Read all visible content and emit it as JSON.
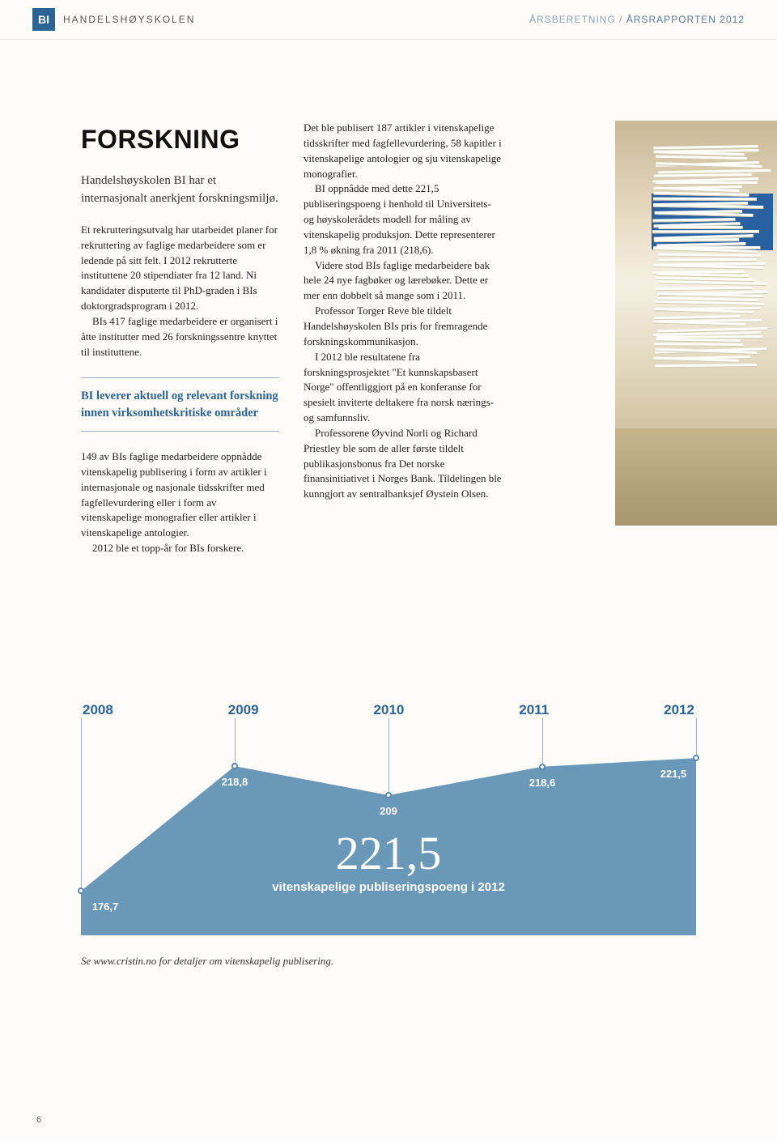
{
  "header": {
    "logo_mark": "BI",
    "logo_text": "HANDELSHØYSKOLEN",
    "crumb_left": "ÅRSBERETNING",
    "crumb_sep": " / ",
    "crumb_right": "ÅRSRAPPORTEN 2012"
  },
  "article": {
    "title": "FORSKNING",
    "lead": "Handelshøyskolen BI har et internasjonalt anerkjent forskningsmiljø.",
    "col1a": "Et rekrutteringsutvalg har utarbeidet planer for rekruttering av faglige medarbeidere som er ledende på sitt felt. I 2012 rekrutterte instituttene 20 stipendiater fra 12 land. Ni kandidater disputerte til PhD-graden i BIs doktorgradsprogram i 2012.",
    "col1b": "BIs 417 faglige medarbeidere er organisert i åtte institutter med 26 forskningssentre knyttet til instituttene.",
    "pull": "BI leverer aktuell og relevant forskning innen virksomhetskritiske områder",
    "col1c": "149 av BIs faglige medarbeidere oppnådde vitenskapelig publisering i form av artikler i internasjonale og nasjonale tidsskrifter med fagfellevurdering eller i form av vitenskapelige monografier eller artikler i vitenskapelige antologier.",
    "col1d": "2012 ble et topp-år for BIs forskere.",
    "col2a": "Det ble publisert 187 artikler i vitenskapelige tidsskrifter med fagfellevurdering, 58 kapitler i vitenskapelige antologier og sju vitenskapelige monografier.",
    "col2b": "BI oppnådde med dette 221,5 publiseringspoeng i henhold til Universitets- og høyskolerådets modell for måling av vitenskapelig produksjon. Dette representerer 1,8 % økning fra 2011 (218,6).",
    "col2c": "Videre stod BIs faglige medarbeidere bak hele 24 nye fagbøker og lærebøker. Dette er mer enn dobbelt så mange som i 2011.",
    "col2d": "Professor Torger Reve ble tildelt Handelshøyskolen BIs pris for fremragende forskningskommunikasjon.",
    "col2e": "I 2012 ble resultatene fra forskningsprosjektet \"Et kunnskapsbasert Norge\" offentliggjort på en konferanse for spesielt inviterte deltakere fra norsk nærings- og samfunnsliv.",
    "col2f": "Professorene Øyvind Norli og Richard Priestley ble som de aller første tildelt publikasjonsbonus fra Det norske finansinitiativet i Norges Bank. Tildelingen ble kunngjort av sentralbanksjef Øystein Olsen."
  },
  "chart": {
    "type": "area",
    "years": [
      "2008",
      "2009",
      "2010",
      "2011",
      "2012"
    ],
    "values": [
      176.7,
      218.8,
      209,
      218.6,
      221.5
    ],
    "labels": [
      "176,7",
      "218,8",
      "209",
      "218,6",
      "221,5"
    ],
    "y_min": 170,
    "y_max": 230,
    "fill_color": "#6a98b9",
    "line_color": "#9ab0c4",
    "label_color": "#ffffff",
    "year_color": "#2a6496",
    "big_number": "221,5",
    "big_sub": "vitenskapelige publiseringspoeng i 2012",
    "footnote": "Se www.cristin.no for detaljer om vitenskapelig publisering."
  },
  "page_number": "6"
}
